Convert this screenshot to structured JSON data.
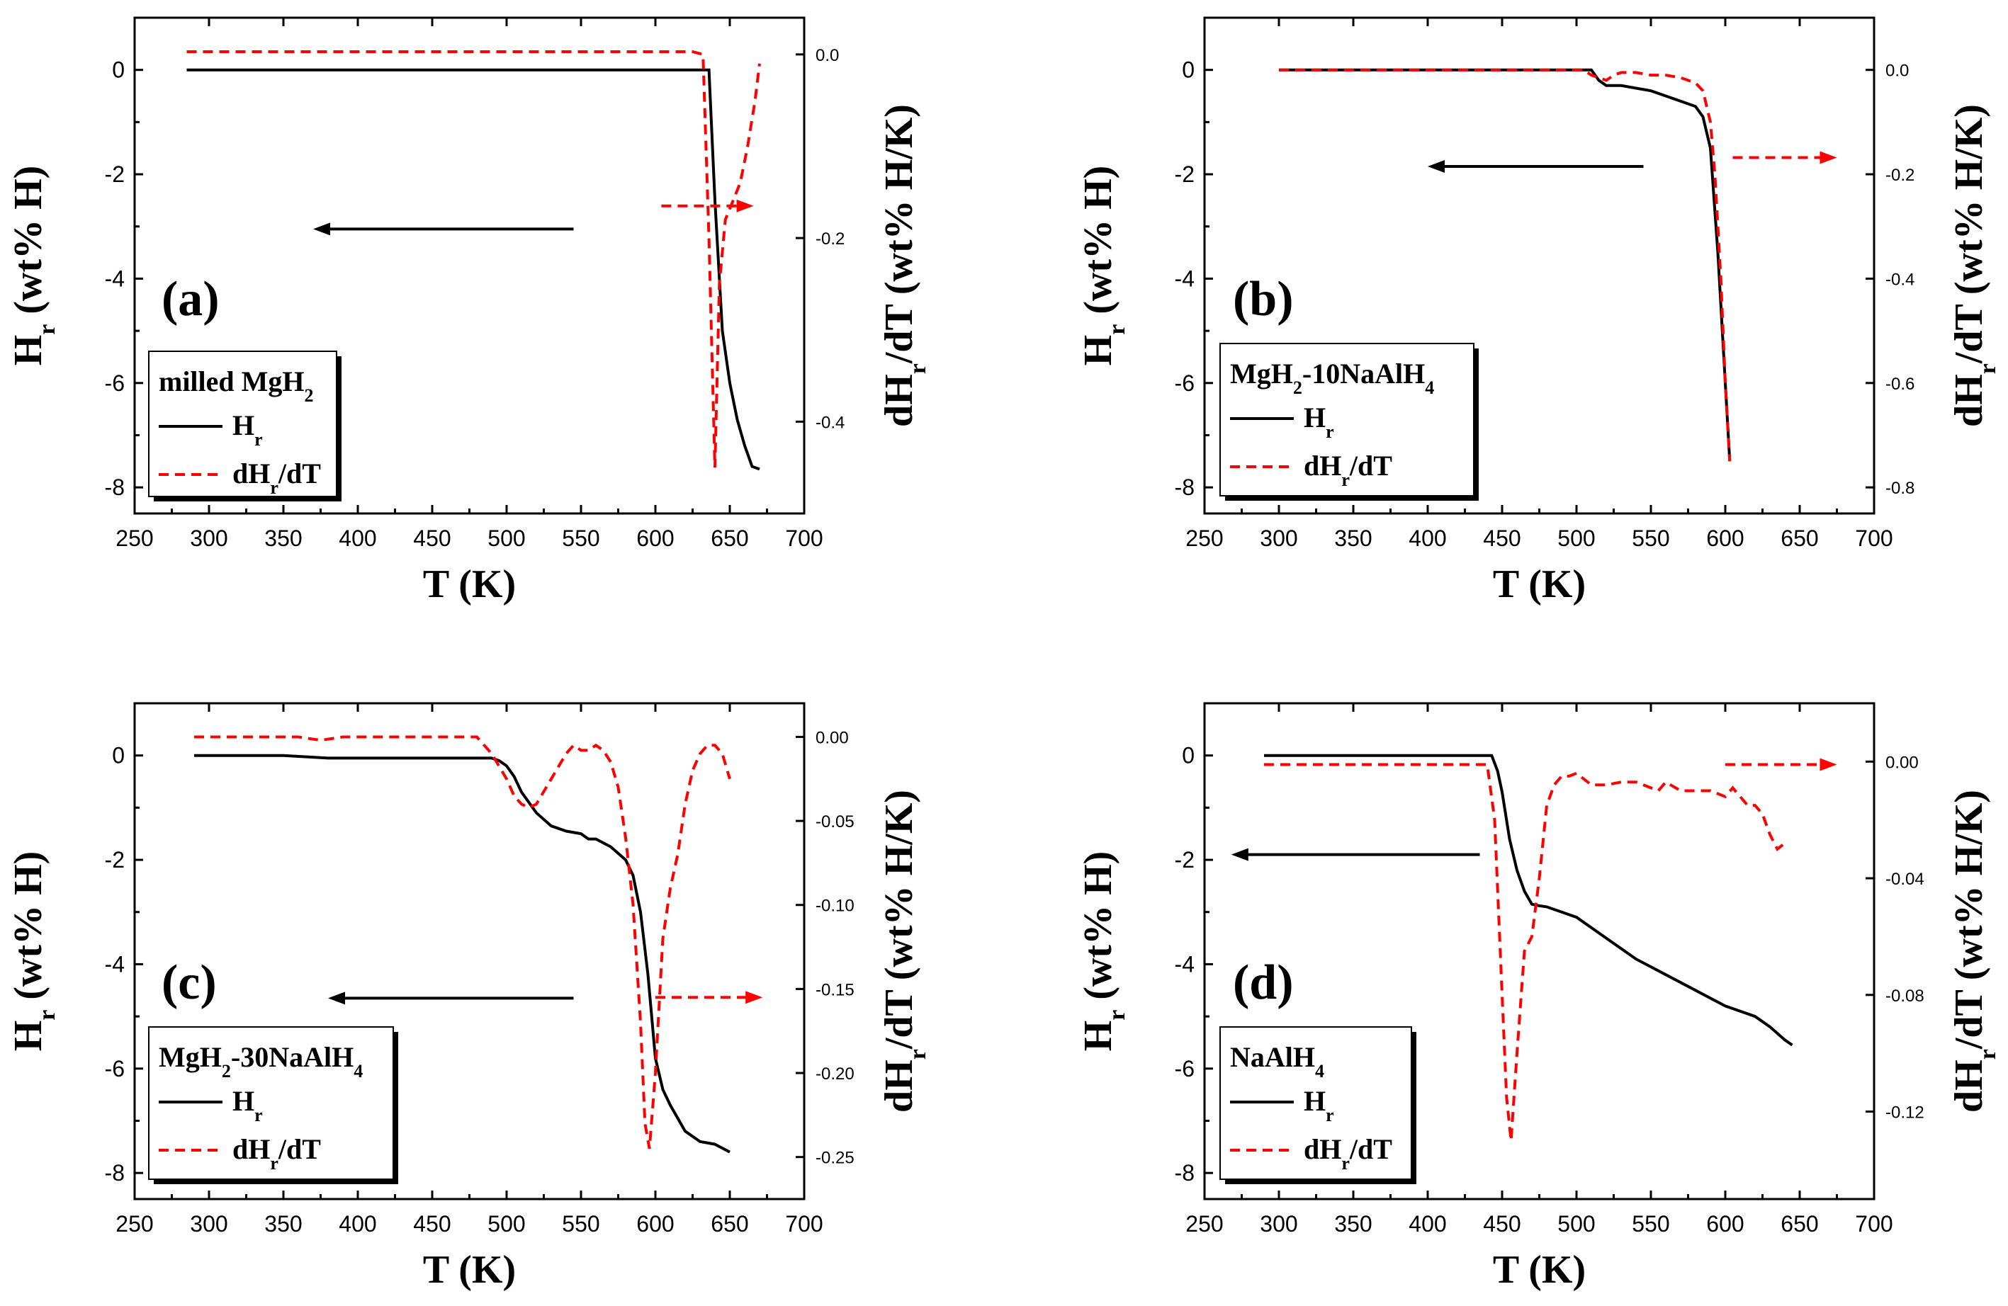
{
  "chart_data": [
    {
      "type": "line",
      "panel_label": "(a)",
      "legend_title": "milled MgH",
      "legend_title_sub": "2",
      "legend_title_tail": "",
      "legend_entries": [
        {
          "name": "H",
          "sub": "r",
          "tail": "",
          "style": "solid"
        },
        {
          "name": "dH",
          "sub": "r",
          "tail": "/dT",
          "style": "dashed"
        }
      ],
      "xlabel": "T (K)",
      "ylabel": {
        "main": "H",
        "sub": "r",
        "tail": " (wt% H)"
      },
      "y2label": {
        "main": "dH",
        "sub": "r",
        "tail": "/dT (wt% H/K)"
      },
      "xlim": [
        250,
        700
      ],
      "xticks": [
        250,
        300,
        350,
        400,
        450,
        500,
        550,
        600,
        650,
        700
      ],
      "ylim": [
        -8.5,
        1
      ],
      "yticks": [
        0,
        -2,
        -4,
        -6,
        -8
      ],
      "ytick_labels": [
        "0",
        "-2",
        "-4",
        "-6",
        "-8"
      ],
      "y2lim": [
        -0.5,
        0.04
      ],
      "y2ticks": [
        0.0,
        -0.2,
        -0.4
      ],
      "y2tick_labels": [
        "0.0",
        "-0.2",
        "-0.4"
      ],
      "series": [
        {
          "name": "Hr",
          "axis": "left",
          "style": "solid",
          "x": [
            285,
            630,
            636,
            640,
            645,
            650,
            655,
            660,
            665,
            670
          ],
          "y": [
            0,
            0,
            0,
            -2.5,
            -5.0,
            -6.0,
            -6.7,
            -7.2,
            -7.6,
            -7.65
          ]
        },
        {
          "name": "dHr/dT",
          "axis": "right",
          "style": "dashed",
          "x": [
            285,
            625,
            632,
            636,
            640,
            643,
            647,
            652,
            657,
            662,
            667,
            670
          ],
          "y": [
            0.003,
            0.003,
            0.0,
            -0.2,
            -0.45,
            -0.25,
            -0.18,
            -0.16,
            -0.14,
            -0.1,
            -0.05,
            -0.01
          ]
        }
      ],
      "arrows": [
        {
          "series": "Hr",
          "x_from": 545,
          "x_to": 370,
          "y": -3.05
        },
        {
          "series": "dHr/dT",
          "x_from": 604,
          "x_to": 666,
          "y": -0.165
        }
      ]
    },
    {
      "type": "line",
      "panel_label": "(b)",
      "legend_title": "MgH",
      "legend_title_sub": "2",
      "legend_title_tail": "-10NaAlH",
      "legend_title_sub2": "4",
      "legend_entries": [
        {
          "name": "H",
          "sub": "r",
          "tail": "",
          "style": "solid"
        },
        {
          "name": "dH",
          "sub": "r",
          "tail": "/dT",
          "style": "dashed"
        }
      ],
      "xlabel": "T (K)",
      "ylabel": {
        "main": "H",
        "sub": "r",
        "tail": " (wt% H)"
      },
      "y2label": {
        "main": "dH",
        "sub": "r",
        "tail": "/dT (wt% H/K)"
      },
      "xlim": [
        250,
        700
      ],
      "xticks": [
        250,
        300,
        350,
        400,
        450,
        500,
        550,
        600,
        650,
        700
      ],
      "ylim": [
        -8.5,
        1
      ],
      "yticks": [
        0,
        -2,
        -4,
        -6,
        -8
      ],
      "ytick_labels": [
        "0",
        "-2",
        "-4",
        "-6",
        "-8"
      ],
      "y2lim": [
        -0.85,
        0.1
      ],
      "y2ticks": [
        0.0,
        -0.2,
        -0.4,
        -0.6,
        -0.8
      ],
      "y2tick_labels": [
        "0.0",
        "-0.2",
        "-0.4",
        "-0.6",
        "-0.8"
      ],
      "series": [
        {
          "name": "Hr",
          "axis": "left",
          "style": "solid",
          "x": [
            300,
            510,
            515,
            520,
            530,
            540,
            550,
            560,
            570,
            580,
            585,
            590,
            595,
            600,
            603
          ],
          "y": [
            0,
            0,
            -0.2,
            -0.3,
            -0.3,
            -0.35,
            -0.4,
            -0.5,
            -0.6,
            -0.7,
            -0.9,
            -1.5,
            -3.5,
            -6.0,
            -7.5
          ]
        },
        {
          "name": "dHr/dT",
          "axis": "right",
          "style": "dashed",
          "x": [
            300,
            505,
            510,
            515,
            520,
            525,
            530,
            540,
            550,
            560,
            570,
            575,
            580,
            585,
            590,
            593,
            597,
            600,
            603
          ],
          "y": [
            0.0,
            0.0,
            -0.01,
            -0.015,
            -0.02,
            -0.01,
            -0.005,
            -0.005,
            -0.01,
            -0.01,
            -0.015,
            -0.02,
            -0.025,
            -0.04,
            -0.1,
            -0.2,
            -0.4,
            -0.6,
            -0.75
          ]
        }
      ],
      "arrows": [
        {
          "series": "Hr",
          "x_from": 545,
          "x_to": 400,
          "y": -1.85
        },
        {
          "series": "dHr/dT",
          "x_from": 605,
          "x_to": 675,
          "y": -0.168
        }
      ]
    },
    {
      "type": "line",
      "panel_label": "(c)",
      "legend_title": "MgH",
      "legend_title_sub": "2",
      "legend_title_tail": "-30NaAlH",
      "legend_title_sub2": "4",
      "legend_entries": [
        {
          "name": "H",
          "sub": "r",
          "tail": "",
          "style": "solid"
        },
        {
          "name": "dH",
          "sub": "r",
          "tail": "/dT",
          "style": "dashed"
        }
      ],
      "xlabel": "T (K)",
      "ylabel": {
        "main": "H",
        "sub": "r",
        "tail": " (wt% H)"
      },
      "y2label": {
        "main": "dH",
        "sub": "r",
        "tail": "/dT (wt% H/K)"
      },
      "xlim": [
        250,
        700
      ],
      "xticks": [
        250,
        300,
        350,
        400,
        450,
        500,
        550,
        600,
        650,
        700
      ],
      "ylim": [
        -8.5,
        1
      ],
      "yticks": [
        0,
        -2,
        -4,
        -6,
        -8
      ],
      "ytick_labels": [
        "0",
        "-2",
        "-4",
        "-6",
        "-8"
      ],
      "y2lim": [
        -0.275,
        0.02
      ],
      "y2ticks": [
        0.0,
        -0.05,
        -0.1,
        -0.15,
        -0.2,
        -0.25
      ],
      "y2tick_labels": [
        "0.00",
        "-0.05",
        "-0.10",
        "-0.15",
        "-0.20",
        "-0.25"
      ],
      "series": [
        {
          "name": "Hr",
          "axis": "left",
          "style": "solid",
          "x": [
            290,
            350,
            380,
            420,
            470,
            490,
            495,
            500,
            505,
            510,
            520,
            530,
            540,
            550,
            555,
            560,
            570,
            580,
            585,
            590,
            595,
            600,
            605,
            610,
            620,
            630,
            640,
            650
          ],
          "y": [
            0,
            0,
            -0.05,
            -0.05,
            -0.05,
            -0.05,
            -0.1,
            -0.2,
            -0.4,
            -0.7,
            -1.1,
            -1.35,
            -1.45,
            -1.5,
            -1.6,
            -1.6,
            -1.75,
            -2.0,
            -2.3,
            -3.0,
            -4.2,
            -5.8,
            -6.4,
            -6.7,
            -7.2,
            -7.4,
            -7.45,
            -7.6
          ]
        },
        {
          "name": "dHr/dT",
          "axis": "right",
          "style": "dashed",
          "x": [
            290,
            360,
            375,
            390,
            480,
            490,
            500,
            505,
            510,
            515,
            520,
            530,
            540,
            545,
            550,
            555,
            560,
            565,
            570,
            575,
            580,
            585,
            590,
            593,
            596,
            600,
            605,
            610,
            615,
            620,
            625,
            630,
            635,
            640,
            645,
            650
          ],
          "y": [
            0.0,
            0.0,
            -0.002,
            0.0,
            0.0,
            -0.01,
            -0.025,
            -0.035,
            -0.04,
            -0.042,
            -0.04,
            -0.025,
            -0.01,
            -0.005,
            -0.008,
            -0.008,
            -0.005,
            -0.008,
            -0.015,
            -0.03,
            -0.06,
            -0.1,
            -0.17,
            -0.23,
            -0.245,
            -0.2,
            -0.12,
            -0.09,
            -0.07,
            -0.04,
            -0.02,
            -0.01,
            -0.005,
            -0.005,
            -0.01,
            -0.025
          ]
        }
      ],
      "arrows": [
        {
          "series": "Hr",
          "x_from": 545,
          "x_to": 380,
          "y": -4.65
        },
        {
          "series": "dHr/dT",
          "x_from": 600,
          "x_to": 672,
          "y": -0.155
        }
      ]
    },
    {
      "type": "line",
      "panel_label": "(d)",
      "legend_title": "NaAlH",
      "legend_title_sub": "4",
      "legend_title_tail": "",
      "legend_entries": [
        {
          "name": "H",
          "sub": "r",
          "tail": "",
          "style": "solid"
        },
        {
          "name": "dH",
          "sub": "r",
          "tail": "/dT",
          "style": "dashed"
        }
      ],
      "xlabel": "T (K)",
      "ylabel": {
        "main": "H",
        "sub": "r",
        "tail": " (wt% H)"
      },
      "y2label": {
        "main": "dH",
        "sub": "r",
        "tail": "/dT (wt% H/K)"
      },
      "xlim": [
        250,
        700
      ],
      "xticks": [
        250,
        300,
        350,
        400,
        450,
        500,
        550,
        600,
        650,
        700
      ],
      "ylim": [
        -8.5,
        1
      ],
      "yticks": [
        0,
        -2,
        -4,
        -6,
        -8
      ],
      "ytick_labels": [
        "0",
        "-2",
        "-4",
        "-6",
        "-8"
      ],
      "y2lim": [
        -0.15,
        0.02
      ],
      "y2ticks": [
        0.0,
        -0.04,
        -0.08,
        -0.12
      ],
      "y2tick_labels": [
        "0.00",
        "-0.04",
        "-0.08",
        "-0.12"
      ],
      "series": [
        {
          "name": "Hr",
          "axis": "left",
          "style": "solid",
          "x": [
            290,
            443,
            447,
            450,
            455,
            460,
            465,
            470,
            475,
            480,
            500,
            520,
            540,
            560,
            580,
            600,
            620,
            630,
            640,
            645
          ],
          "y": [
            0,
            0,
            -0.3,
            -0.7,
            -1.6,
            -2.2,
            -2.6,
            -2.85,
            -2.88,
            -2.9,
            -3.1,
            -3.5,
            -3.9,
            -4.2,
            -4.5,
            -4.8,
            -5.0,
            -5.2,
            -5.45,
            -5.55
          ]
        },
        {
          "name": "dHr/dT",
          "axis": "right",
          "style": "dashed",
          "x": [
            290,
            440,
            445,
            450,
            453,
            456,
            460,
            465,
            470,
            475,
            480,
            485,
            490,
            495,
            500,
            510,
            520,
            530,
            540,
            550,
            555,
            560,
            570,
            580,
            590,
            600,
            605,
            610,
            615,
            620,
            625,
            630,
            635,
            640
          ],
          "y": [
            -0.001,
            -0.001,
            -0.02,
            -0.08,
            -0.115,
            -0.13,
            -0.1,
            -0.065,
            -0.06,
            -0.04,
            -0.015,
            -0.008,
            -0.005,
            -0.005,
            -0.004,
            -0.008,
            -0.008,
            -0.007,
            -0.007,
            -0.009,
            -0.01,
            -0.007,
            -0.01,
            -0.01,
            -0.01,
            -0.012,
            -0.009,
            -0.012,
            -0.015,
            -0.015,
            -0.018,
            -0.025,
            -0.03,
            -0.028
          ]
        }
      ],
      "arrows": [
        {
          "series": "Hr",
          "x_from": 435,
          "x_to": 268,
          "y": -1.9
        },
        {
          "series": "dHr/dT",
          "x_from": 600,
          "x_to": 675,
          "y": -0.001
        }
      ]
    }
  ]
}
